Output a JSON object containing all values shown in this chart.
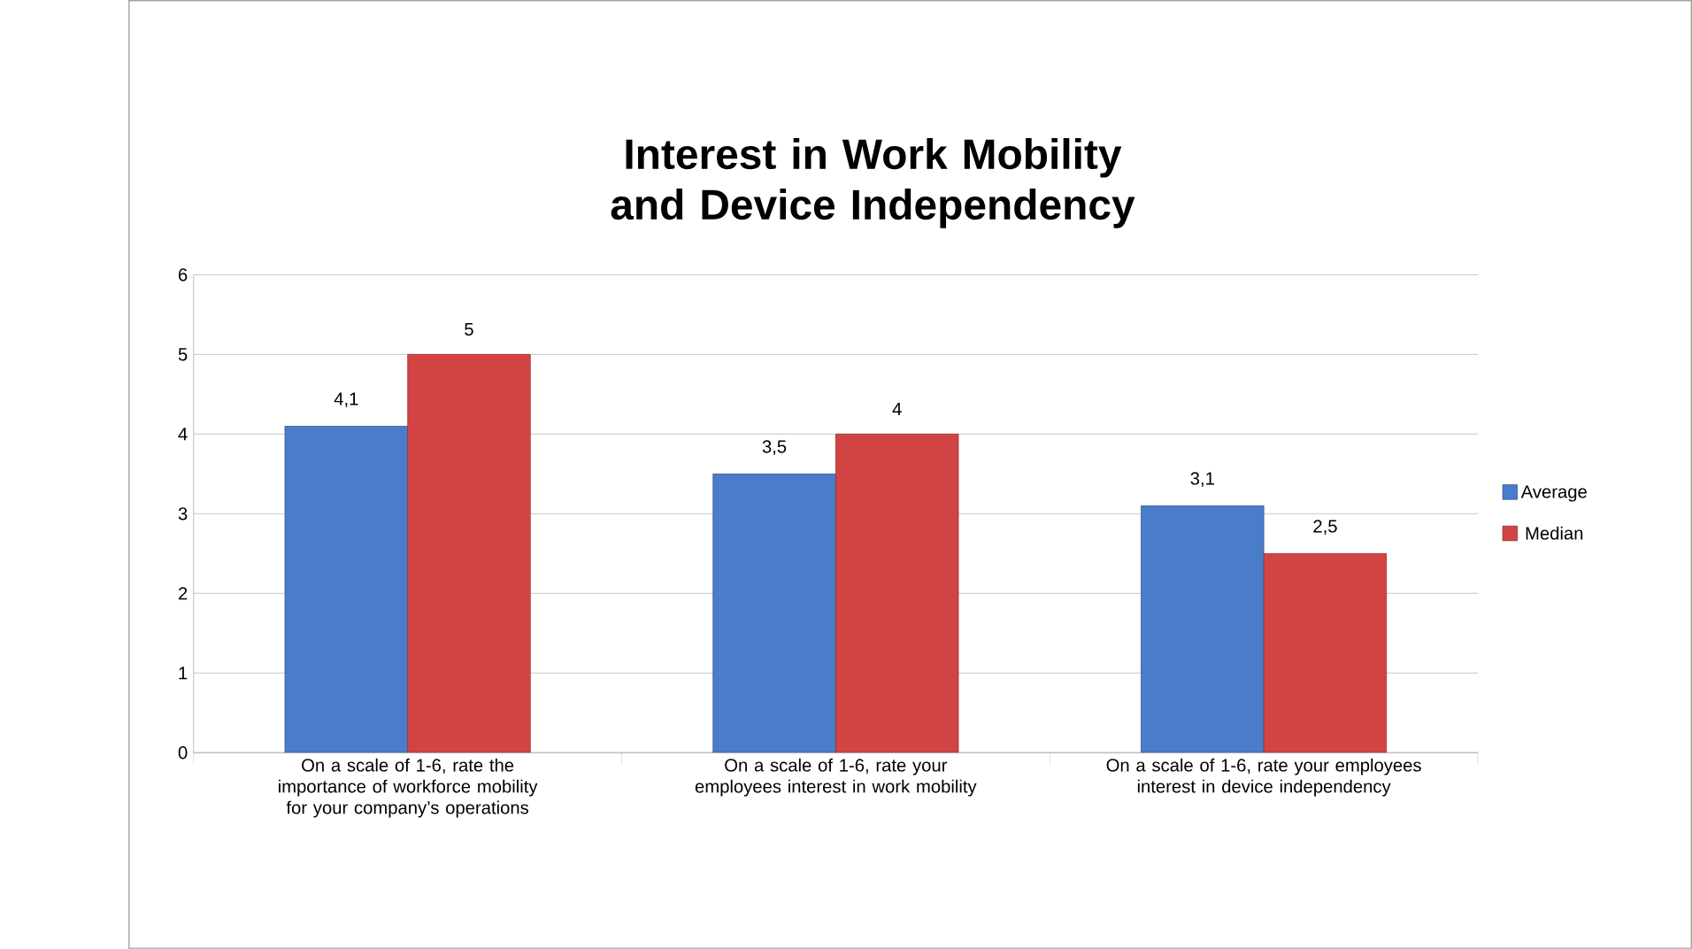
{
  "chart_data": {
    "type": "bar",
    "title": "Interest in Work Mobility and Device Independency",
    "categories": [
      "On a scale of 1-6, rate the importance of workforce mobility for your company’s operations",
      "On a scale of 1-6, rate your employees interest in work mobility",
      "On a scale of 1-6, rate your employees interest in device independency"
    ],
    "series": [
      {
        "name": "Average",
        "color": "#4a7cc9",
        "values": [
          4.1,
          3.5,
          3.1
        ],
        "value_labels": [
          "4,1",
          "3,5",
          "3,1"
        ]
      },
      {
        "name": "Median",
        "color": "#d24343",
        "values": [
          5,
          4,
          2.5
        ],
        "value_labels": [
          "5",
          "4",
          "2,5"
        ]
      }
    ],
    "ylim": [
      0,
      6
    ],
    "yticks": [
      0,
      1,
      2,
      3,
      4,
      5,
      6
    ],
    "grid": "y",
    "legend": "right"
  }
}
